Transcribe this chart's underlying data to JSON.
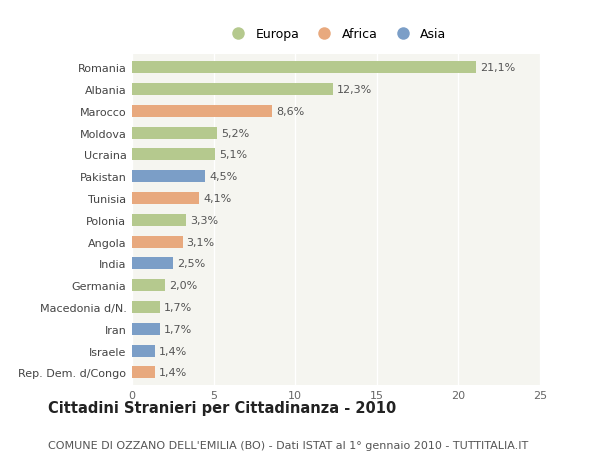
{
  "countries": [
    "Romania",
    "Albania",
    "Marocco",
    "Moldova",
    "Ucraina",
    "Pakistan",
    "Tunisia",
    "Polonia",
    "Angola",
    "India",
    "Germania",
    "Macedonia d/N.",
    "Iran",
    "Israele",
    "Rep. Dem. d/Congo"
  ],
  "values": [
    21.1,
    12.3,
    8.6,
    5.2,
    5.1,
    4.5,
    4.1,
    3.3,
    3.1,
    2.5,
    2.0,
    1.7,
    1.7,
    1.4,
    1.4
  ],
  "labels": [
    "21,1%",
    "12,3%",
    "8,6%",
    "5,2%",
    "5,1%",
    "4,5%",
    "4,1%",
    "3,3%",
    "3,1%",
    "2,5%",
    "2,0%",
    "1,7%",
    "1,7%",
    "1,4%",
    "1,4%"
  ],
  "continents": [
    "Europa",
    "Europa",
    "Africa",
    "Europa",
    "Europa",
    "Asia",
    "Africa",
    "Europa",
    "Africa",
    "Asia",
    "Europa",
    "Europa",
    "Asia",
    "Asia",
    "Africa"
  ],
  "colors": {
    "Europa": "#b5c98e",
    "Africa": "#e8a97e",
    "Asia": "#7b9ec7"
  },
  "legend_labels": [
    "Europa",
    "Africa",
    "Asia"
  ],
  "xlim": [
    0,
    25
  ],
  "xticks": [
    0,
    5,
    10,
    15,
    20,
    25
  ],
  "title": "Cittadini Stranieri per Cittadinanza - 2010",
  "subtitle": "COMUNE DI OZZANO DELL'EMILIA (BO) - Dati ISTAT al 1° gennaio 2010 - TUTTITALIA.IT",
  "bg_color": "#ffffff",
  "plot_bg_color": "#f5f5f0",
  "grid_color": "#ffffff",
  "bar_height": 0.55,
  "title_fontsize": 10.5,
  "subtitle_fontsize": 8,
  "label_fontsize": 8,
  "tick_fontsize": 8,
  "legend_fontsize": 9
}
